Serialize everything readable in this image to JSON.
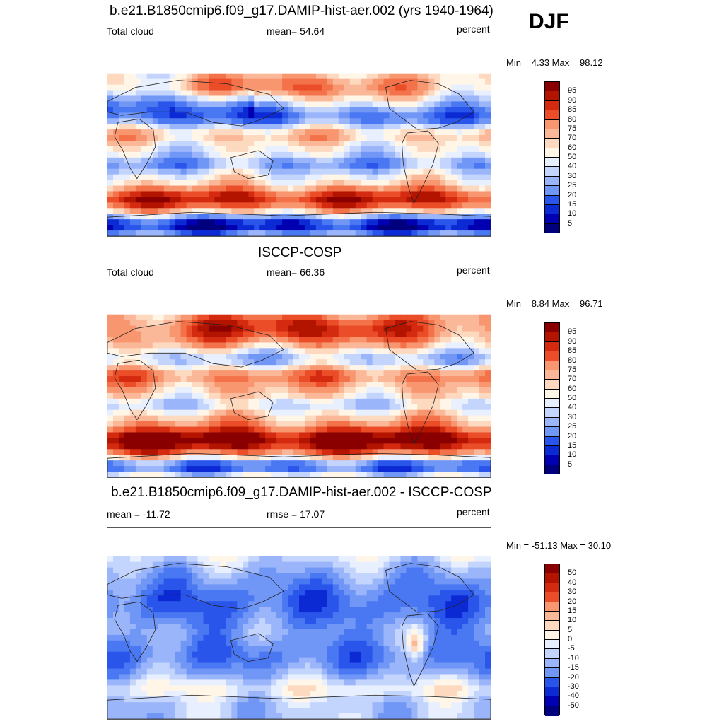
{
  "season": "DJF",
  "colors": {
    "abs_levels": [
      "#00007f",
      "#0000b2",
      "#0c2ad4",
      "#2a55ea",
      "#4a77f2",
      "#7096f6",
      "#9bb5fa",
      "#c3d4fd",
      "#e8f0ff",
      "#fff6e8",
      "#fdd9c0",
      "#fbb898",
      "#f89670",
      "#f3724a",
      "#ea4d28",
      "#d42a10",
      "#b21400",
      "#8a0000"
    ],
    "diff_levels": [
      "#00007f",
      "#0000b2",
      "#0c2ad4",
      "#2a55ea",
      "#4a77f2",
      "#7096f6",
      "#9bb5fa",
      "#c3d4fd",
      "#e8f0ff",
      "#fff6e8",
      "#fdd9c0",
      "#fbb898",
      "#f89670",
      "#f3724a",
      "#ea4d28",
      "#d42a10",
      "#b21400",
      "#8a0000"
    ]
  },
  "chart_data": [
    {
      "type": "heatmap",
      "title": "b.e21.B1850cmip6.f09_g17.DAMIP-hist-aer.002 (yrs 1940-1964)",
      "left_label": "Total cloud",
      "center_label": "mean=  54.64",
      "units": "percent",
      "minmax": "Min =   4.33 Max =  98.12",
      "colorbar_ticks": [
        "95",
        "90",
        "85",
        "80",
        "75",
        "70",
        "60",
        "50",
        "40",
        "30",
        "25",
        "20",
        "15",
        "10",
        "5"
      ]
    },
    {
      "type": "heatmap",
      "title": "ISCCP-COSP",
      "left_label": "Total cloud",
      "center_label": "mean=  66.36",
      "units": "percent",
      "minmax": "Min =   8.84 Max =  96.71",
      "colorbar_ticks": [
        "95",
        "90",
        "85",
        "80",
        "75",
        "70",
        "60",
        "50",
        "40",
        "30",
        "25",
        "20",
        "15",
        "10",
        "5"
      ]
    },
    {
      "type": "heatmap",
      "title": "b.e21.B1850cmip6.f09_g17.DAMIP-hist-aer.002 - ISCCP-COSP",
      "left_label": "mean = -11.72",
      "center_label": "rmse =  17.07",
      "units": "percent",
      "minmax": "Min = -51.13 Max =  30.10",
      "colorbar_ticks": [
        "50",
        "40",
        "30",
        "20",
        "15",
        "10",
        "5",
        "0",
        "-5",
        "-10",
        "-15",
        "-20",
        "-30",
        "-40",
        "-50"
      ]
    }
  ]
}
